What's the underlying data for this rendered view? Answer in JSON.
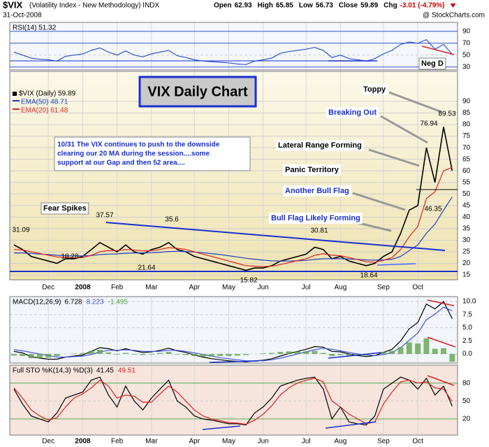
{
  "header": {
    "symbol": "$VIX",
    "name": "(Volatility Index - New Methodology) INDX",
    "date": "31-Oct-2008",
    "credit": "@ StockCharts.com",
    "quote": [
      {
        "label": "Open",
        "value": 62.93
      },
      {
        "label": "High",
        "value": 65.85
      },
      {
        "label": "Low",
        "value": 56.73
      },
      {
        "label": "Close",
        "value": 59.89
      },
      {
        "label": "Chg",
        "value": "-3.01 (-4.79%)"
      }
    ]
  },
  "chart_data": [
    {
      "type": "line",
      "title": "RSI(14) 51.32",
      "ylim": [
        25,
        105
      ],
      "yticks": [
        90,
        70,
        50,
        30
      ],
      "series": [
        {
          "color": "#3355cc",
          "values": [
            55,
            50,
            45,
            43,
            42,
            40,
            48,
            50,
            52,
            58,
            62,
            55,
            50,
            57,
            50,
            47,
            52,
            55,
            58,
            49,
            46,
            42,
            40,
            39,
            38,
            37,
            35,
            34,
            40,
            42,
            45,
            53,
            56,
            58,
            60,
            63,
            58,
            46,
            50,
            44,
            42,
            40,
            44,
            52,
            58,
            68,
            72,
            70,
            76,
            60,
            68,
            51.32
          ]
        }
      ]
    },
    {
      "type": "line",
      "ylim": [
        12.9,
        103
      ],
      "yticks": [
        15,
        20,
        25,
        30,
        35,
        40,
        45,
        50,
        55,
        60,
        65,
        70,
        75,
        80,
        85,
        90
      ],
      "categories": [
        null,
        null,
        null,
        null,
        "Dec",
        null,
        null,
        null,
        "2008",
        null,
        null,
        null,
        "Feb",
        null,
        null,
        null,
        "Mar",
        null,
        null,
        null,
        null,
        "Apr",
        null,
        null,
        null,
        "May",
        null,
        null,
        null,
        "Jun",
        null,
        null,
        null,
        null,
        "Jul",
        null,
        null,
        null,
        "Aug",
        null,
        null,
        null,
        null,
        "Sep",
        null,
        null,
        null,
        "Oct",
        null,
        null,
        null,
        null
      ],
      "series": [
        {
          "name": "$VIX (Daily) 59.89",
          "color": "#000000",
          "values": [
            28,
            26,
            23,
            22,
            21,
            20,
            22,
            22,
            23,
            26,
            29,
            27,
            25,
            28,
            25,
            24,
            26,
            27,
            29,
            26,
            25,
            23,
            22,
            21,
            20,
            19,
            18,
            17,
            18,
            18,
            19,
            21,
            22,
            23,
            24,
            27,
            26,
            22,
            23,
            21,
            20,
            19,
            20,
            23,
            25,
            33,
            43,
            45,
            70,
            55,
            79,
            60
          ]
        },
        {
          "name": "EMA(50) 48.71",
          "color": "#1f3fbf",
          "values": [
            24.5,
            24.5,
            24.3,
            24,
            23.8,
            23.5,
            23.3,
            23.2,
            23.2,
            23.4,
            23.8,
            24,
            24.1,
            24.4,
            24.5,
            24.5,
            24.6,
            24.8,
            25.1,
            25.2,
            25.1,
            24.9,
            24.6,
            24.2,
            23.8,
            23.3,
            22.8,
            22.2,
            21.8,
            21.4,
            21.1,
            21.0,
            21.0,
            21.1,
            21.3,
            21.7,
            22.0,
            22.0,
            22.0,
            21.9,
            21.7,
            21.5,
            21.4,
            21.5,
            21.8,
            23.0,
            25.5,
            28,
            33,
            37,
            43,
            48.71
          ]
        },
        {
          "name": "EMA(20) 61.48",
          "color": "#dd2222",
          "values": [
            26,
            25.8,
            25,
            24.3,
            23.5,
            22.8,
            22.6,
            22.4,
            22.5,
            23.5,
            25,
            25.6,
            25.5,
            26,
            25.8,
            25.4,
            25.5,
            26,
            26.8,
            26.5,
            26,
            25,
            24,
            23,
            22,
            21,
            20,
            19,
            18.8,
            18.6,
            18.8,
            19.5,
            20.3,
            21.2,
            22,
            23.5,
            24.2,
            23.5,
            23.3,
            22.5,
            21.6,
            20.7,
            20.5,
            21.3,
            22.5,
            26,
            31.5,
            36,
            48,
            51,
            60,
            61.48
          ]
        }
      ],
      "title_box": "VIX Daily Chart",
      "comment": [
        "10/31  The VIX continues to push to the downside",
        "clearing our 20 MA during the session....some",
        "support at our Gap and then 52 area...."
      ],
      "notes": [
        "Fear Spikes",
        "Bull Flag Likely Forming",
        "Another Bull Flag",
        "Panic Territory",
        "Lateral Range Forming",
        "Breaking Out",
        "Toppy",
        "Neg D"
      ],
      "price_labels": [
        31.09,
        18.28,
        37.57,
        21.64,
        35.6,
        15.82,
        30.81,
        18.64,
        46.35,
        76.94,
        89.53
      ]
    },
    {
      "type": "line",
      "title": "MACD(12,26,9)",
      "ylim": [
        -1.73,
        10.93
      ],
      "yticks": [
        {
          "value": 10,
          "label": "10.0"
        },
        7.5,
        {
          "value": 5,
          "label": "5.0"
        },
        2.5,
        {
          "value": 0,
          "label": "0.0"
        }
      ],
      "series": [
        {
          "name": "6.728",
          "color": "#000000",
          "values": [
            0.5,
            0.2,
            -0.5,
            -0.8,
            -1.0,
            -1.0,
            -0.6,
            -0.4,
            -0.2,
            0.5,
            1.2,
            1.0,
            0.6,
            1.0,
            0.6,
            0.3,
            0.4,
            0.7,
            1.1,
            0.6,
            0.3,
            -0.2,
            -0.6,
            -0.9,
            -1.1,
            -1.3,
            -1.4,
            -1.5,
            -1.3,
            -1.2,
            -0.9,
            -0.4,
            0.1,
            0.5,
            0.9,
            1.4,
            1.3,
            0.5,
            0.4,
            0.0,
            -0.3,
            -0.5,
            -0.3,
            0.3,
            0.9,
            2.5,
            4.8,
            6.0,
            9.5,
            8.6,
            10.0,
            6.728
          ]
        },
        {
          "name": "8.223",
          "color": "#4455dd",
          "values": [
            0.8,
            0.6,
            0.3,
            0.0,
            -0.3,
            -0.6,
            -0.6,
            -0.5,
            -0.4,
            -0.1,
            0.4,
            0.7,
            0.7,
            0.8,
            0.7,
            0.5,
            0.5,
            0.5,
            0.7,
            0.7,
            0.5,
            0.2,
            -0.1,
            -0.4,
            -0.7,
            -0.9,
            -1.1,
            -1.3,
            -1.3,
            -1.3,
            -1.1,
            -0.8,
            -0.4,
            0.0,
            0.4,
            0.8,
            1.1,
            0.9,
            0.6,
            0.3,
            0.0,
            -0.2,
            -0.3,
            -0.1,
            0.3,
            1.2,
            2.6,
            4.0,
            6.5,
            7.6,
            8.9,
            8.223
          ]
        },
        {
          "name": "-1.495",
          "color": "#55a040",
          "style": "bar",
          "values": [
            -0.3,
            -0.4,
            -0.8,
            -0.8,
            -0.7,
            -0.4,
            0.0,
            0.1,
            0.2,
            0.6,
            0.8,
            0.3,
            -0.1,
            0.2,
            -0.1,
            -0.2,
            -0.1,
            0.2,
            0.4,
            -0.1,
            -0.2,
            -0.4,
            -0.5,
            -0.5,
            -0.4,
            -0.4,
            -0.3,
            -0.2,
            0.0,
            0.1,
            0.2,
            0.4,
            0.5,
            0.5,
            0.5,
            0.6,
            0.2,
            -0.4,
            -0.2,
            -0.3,
            -0.3,
            -0.3,
            0.0,
            0.4,
            0.6,
            1.3,
            2.2,
            2.0,
            3.0,
            1.0,
            1.1,
            -1.495
          ]
        }
      ]
    },
    {
      "type": "line",
      "title": "Full STO %K(14,3) %D(3)",
      "ylim": [
        -7,
        110
      ],
      "yticks": [
        80,
        50,
        20
      ],
      "series": [
        {
          "name": "41.45",
          "color": "#000000",
          "values": [
            70,
            45,
            25,
            20,
            15,
            30,
            55,
            60,
            65,
            85,
            90,
            60,
            40,
            75,
            50,
            35,
            55,
            70,
            85,
            50,
            40,
            25,
            20,
            18,
            15,
            12,
            12,
            10,
            30,
            40,
            55,
            75,
            80,
            85,
            88,
            90,
            70,
            20,
            40,
            15,
            12,
            10,
            25,
            70,
            80,
            90,
            85,
            70,
            88,
            60,
            75,
            41.45
          ]
        },
        {
          "name": "49.51",
          "color": "#dd2222",
          "values": [
            72,
            55,
            35,
            25,
            18,
            22,
            40,
            55,
            62,
            72,
            85,
            75,
            55,
            60,
            58,
            48,
            48,
            62,
            75,
            65,
            50,
            35,
            25,
            20,
            17,
            14,
            13,
            11,
            18,
            28,
            42,
            60,
            72,
            80,
            85,
            88,
            82,
            50,
            40,
            28,
            20,
            12,
            15,
            45,
            65,
            82,
            85,
            80,
            82,
            72,
            70,
            49.51
          ]
        }
      ]
    }
  ]
}
